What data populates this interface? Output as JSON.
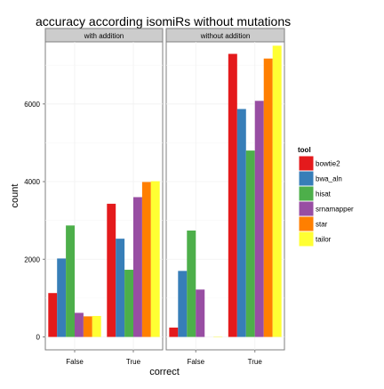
{
  "chart_data": {
    "type": "bar",
    "title": "accuracy according isomiRs without mutations",
    "xlabel": "correct",
    "ylabel": "count",
    "ylim": [
      0,
      7600
    ],
    "yticks": [
      0,
      2000,
      4000,
      6000
    ],
    "categories": [
      "False",
      "True"
    ],
    "legend": {
      "title": "tool",
      "position": "right"
    },
    "grid": true,
    "panels": [
      {
        "label": "with addition",
        "series": [
          {
            "name": "bowtie2",
            "color": "#e41a1c",
            "values": [
              1130,
              3430
            ]
          },
          {
            "name": "bwa_aln",
            "color": "#377eb8",
            "values": [
              2020,
              2530
            ]
          },
          {
            "name": "hisat",
            "color": "#4daf4a",
            "values": [
              2870,
              1730
            ]
          },
          {
            "name": "srnamapper",
            "color": "#984ea3",
            "values": [
              620,
              3600
            ]
          },
          {
            "name": "star",
            "color": "#ff7f00",
            "values": [
              530,
              3990
            ]
          },
          {
            "name": "tailor",
            "color": "#ffff33",
            "values": [
              540,
              4010
            ]
          }
        ]
      },
      {
        "label": "without addition",
        "series": [
          {
            "name": "bowtie2",
            "color": "#e41a1c",
            "values": [
              240,
              7290
            ]
          },
          {
            "name": "bwa_aln",
            "color": "#377eb8",
            "values": [
              1700,
              5870
            ]
          },
          {
            "name": "hisat",
            "color": "#4daf4a",
            "values": [
              2740,
              4800
            ]
          },
          {
            "name": "srnamapper",
            "color": "#984ea3",
            "values": [
              1220,
              6080
            ]
          },
          {
            "name": "star",
            "color": "#ff7f00",
            "values": [
              0,
              7170
            ]
          },
          {
            "name": "tailor",
            "color": "#ffff33",
            "values": [
              10,
              7500
            ]
          }
        ]
      }
    ]
  }
}
